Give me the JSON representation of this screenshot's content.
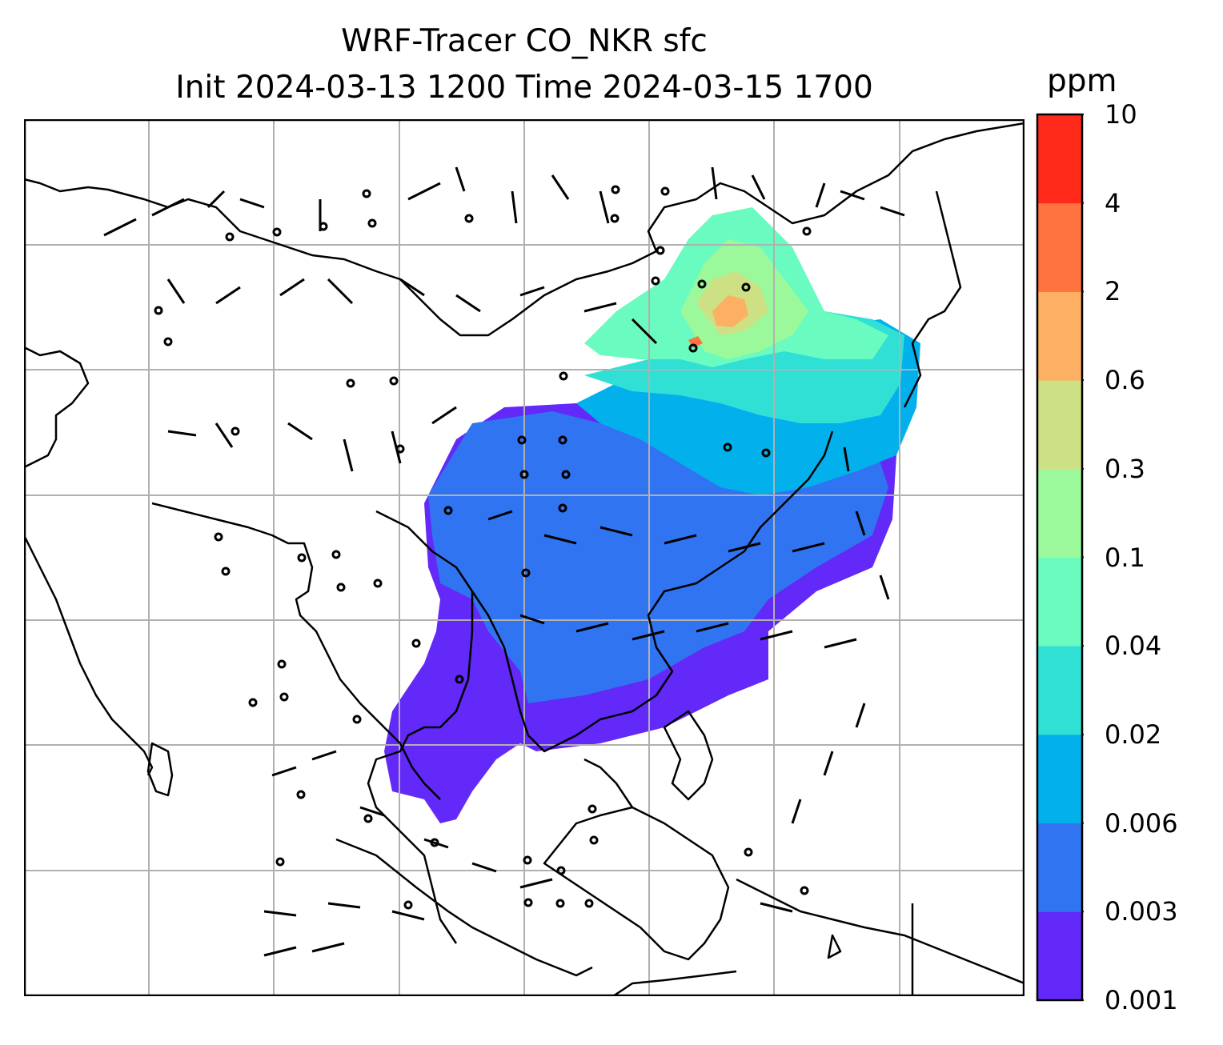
{
  "title": {
    "line1": "WRF-Tracer CO_NKR sfc",
    "line2": "Init 2024-03-13 1200 Time 2024-03-15 1700"
  },
  "colorbar": {
    "unit": "ppm",
    "levels": [
      {
        "label": "0.001",
        "color": "#6229f8"
      },
      {
        "label": "0.003",
        "color": "#3174f1"
      },
      {
        "label": "0.006",
        "color": "#02b1ec"
      },
      {
        "label": "0.02",
        "color": "#30e0d5"
      },
      {
        "label": "0.04",
        "color": "#69fbbf"
      },
      {
        "label": "0.1",
        "color": "#9bf99b"
      },
      {
        "label": "0.3",
        "color": "#cde184"
      },
      {
        "label": "0.6",
        "color": "#fdb064"
      },
      {
        "label": "2",
        "color": "#ff7341"
      },
      {
        "label": "4",
        "color": "#ff2a1a"
      },
      {
        "label": "10",
        "color": null
      }
    ]
  },
  "map": {
    "gridlines": true,
    "gridline_color": "#b0b0b0",
    "coastline_color": "#000000",
    "frame_color": "#000000"
  }
}
